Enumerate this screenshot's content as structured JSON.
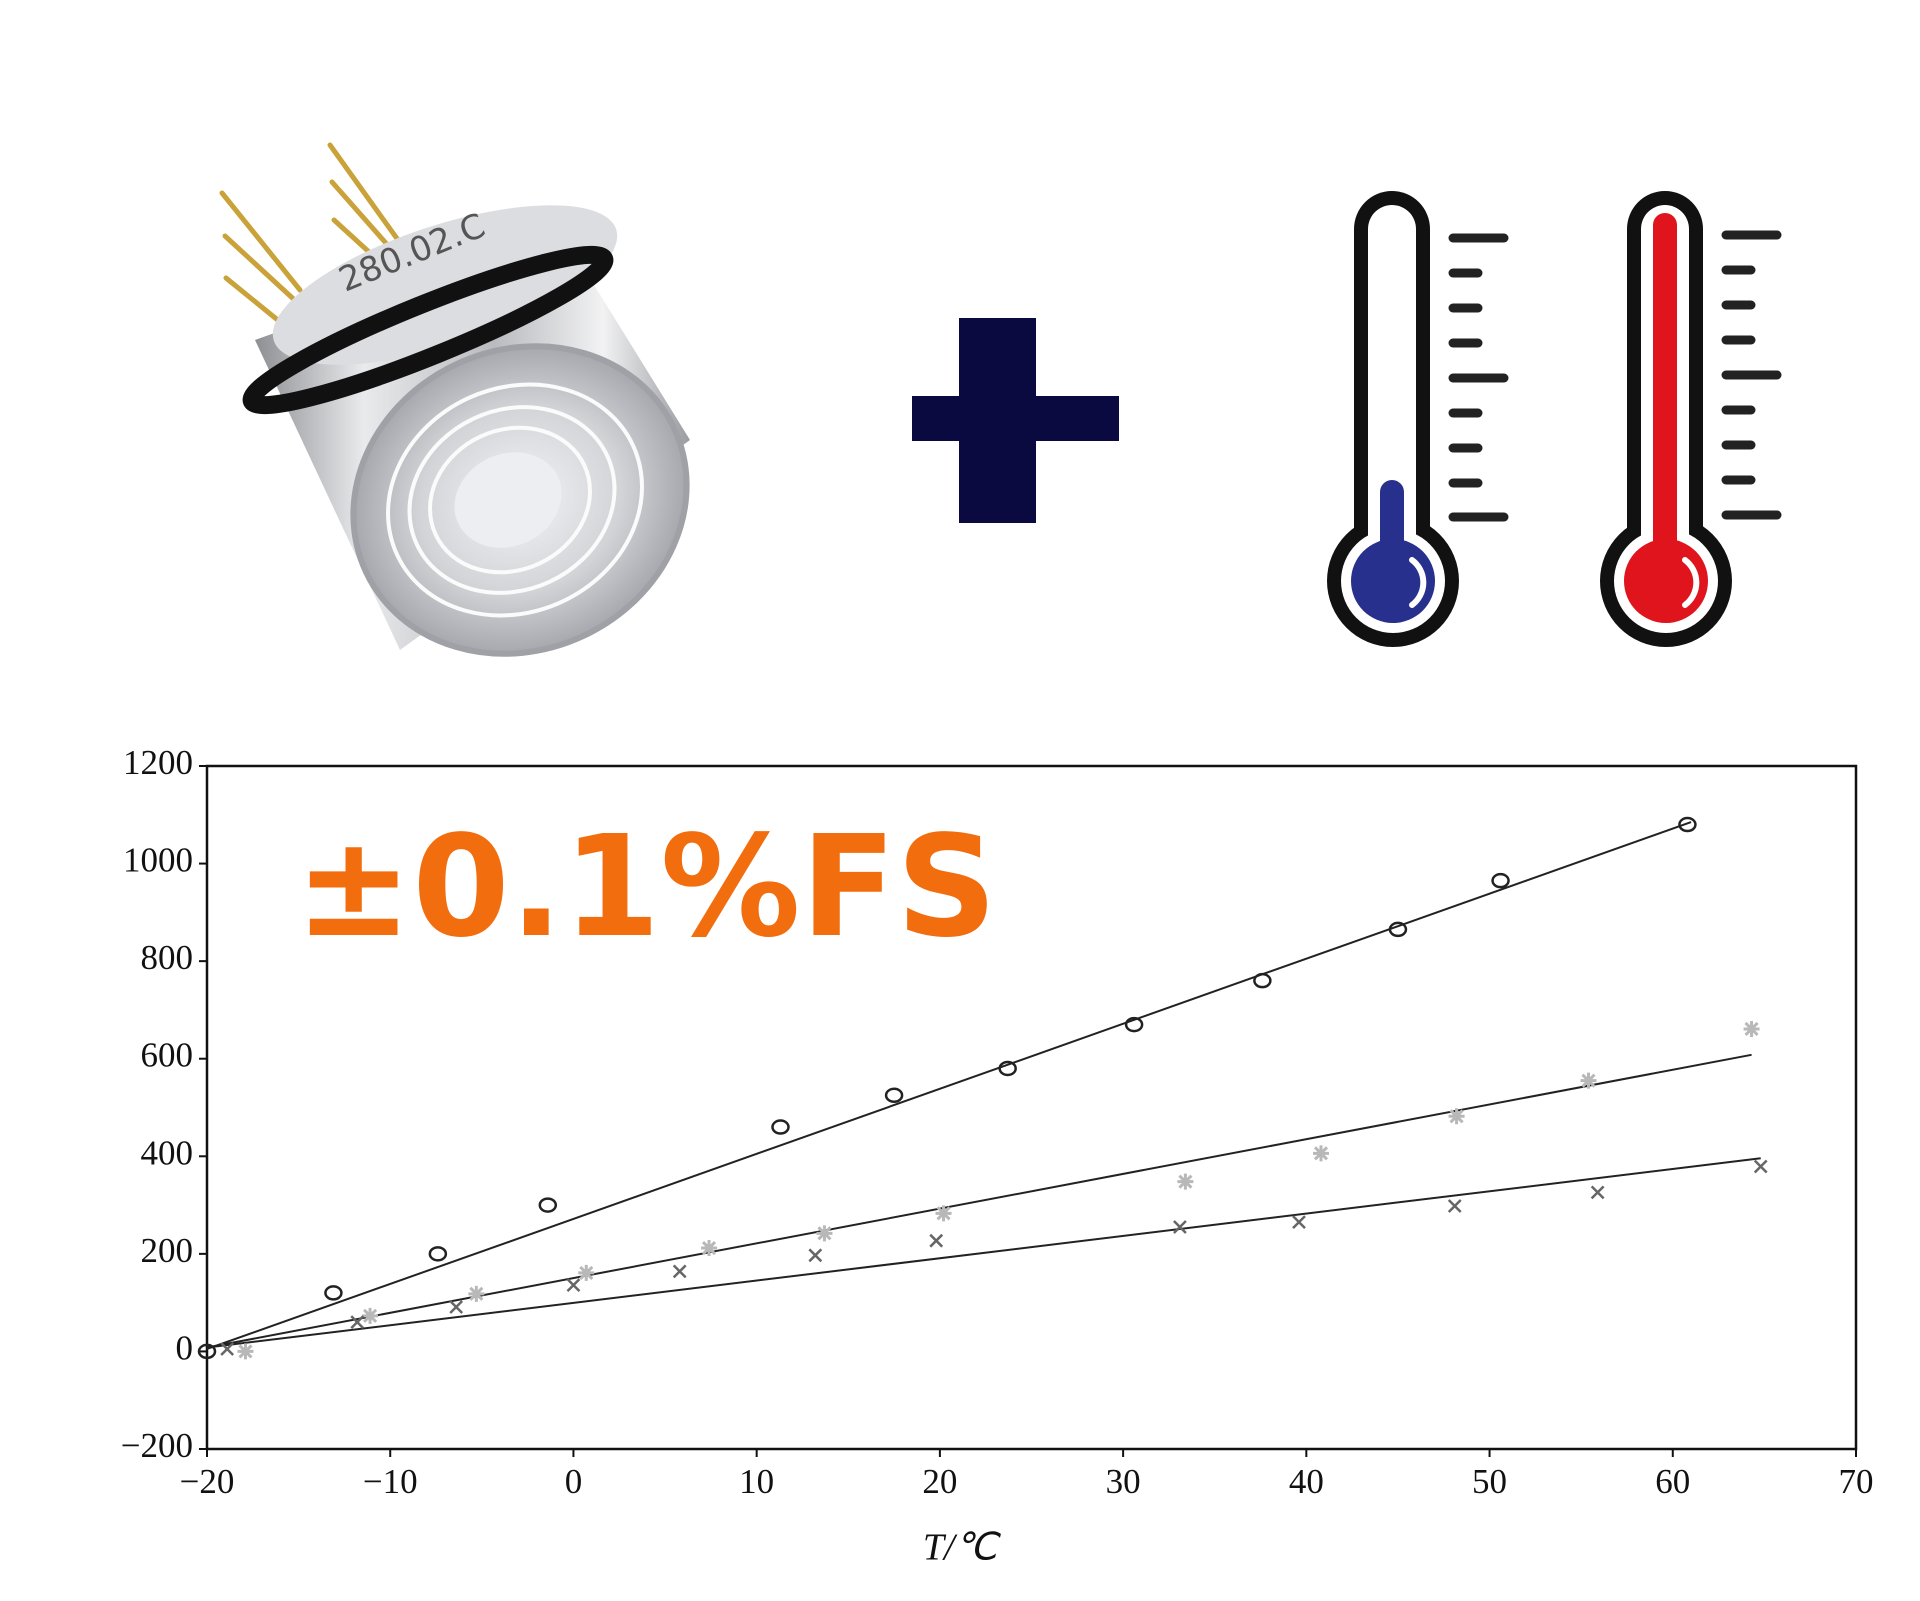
{
  "product": {
    "label": "280.02.C"
  },
  "chart_data": {
    "type": "scatter",
    "annotation": "±0.1%FS",
    "x_label": "T/℃",
    "xlim": [
      -20,
      70
    ],
    "xticks": [
      {
        "value": -20,
        "label": "−20"
      },
      {
        "value": -10,
        "label": "−10"
      },
      0,
      10,
      20,
      30,
      40,
      50,
      60,
      70
    ],
    "ylim": [
      -200,
      1200
    ],
    "yticks": [
      {
        "value": -200,
        "label": "−200"
      },
      0,
      200,
      400,
      600,
      800,
      1000,
      1200
    ],
    "series": [
      {
        "marker": "circle",
        "color": "#222222",
        "x": [
          -20,
          -13.1,
          -7.4,
          -1.4,
          11.3,
          17.5,
          23.7,
          30.6,
          37.6,
          45,
          50.6,
          60.8
        ],
        "values": [
          0,
          120,
          200,
          300,
          460,
          525,
          580,
          670,
          760,
          865,
          965,
          1080
        ]
      },
      {
        "marker": "asterisk",
        "color": "#b8b8b8",
        "x": [
          -17.9,
          -11.1,
          -5.3,
          0.7,
          7.4,
          13.7,
          20.2,
          33.4,
          40.8,
          48.2,
          55.4,
          64.3
        ],
        "values": [
          0,
          73,
          118,
          161,
          212,
          242,
          283,
          348,
          406,
          482,
          555,
          661
        ]
      },
      {
        "marker": "cross",
        "color": "#666666",
        "x": [
          -18.9,
          -11.8,
          -6.4,
          0,
          5.8,
          13.2,
          19.8,
          33.1,
          39.6,
          48.1,
          55.9,
          64.8
        ],
        "values": [
          5,
          60,
          91,
          136,
          164,
          197,
          227,
          255,
          265,
          298,
          326,
          379
        ]
      }
    ],
    "fit_lines": [
      {
        "color": "#222222",
        "x": [
          -20,
          61
        ],
        "values": [
          5,
          1085
        ]
      },
      {
        "color": "#222222",
        "x": [
          -20,
          64.3
        ],
        "values": [
          8,
          608
        ]
      },
      {
        "color": "#222222",
        "x": [
          -20,
          64.8
        ],
        "values": [
          8,
          396
        ]
      }
    ]
  }
}
